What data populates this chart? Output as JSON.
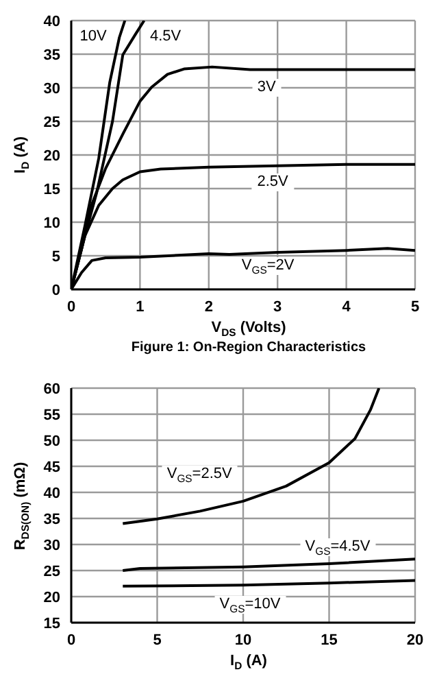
{
  "chart_data": [
    {
      "type": "line",
      "title": "Figure 1: On-Region Characteristics",
      "xlabel": "V$_{DS}$ (Volts)",
      "ylabel": "I$_{D}$ (A)",
      "xlim": [
        0,
        5
      ],
      "xticks": [
        0,
        1,
        2,
        3,
        4,
        5
      ],
      "ylim": [
        0,
        40
      ],
      "yticks": [
        0,
        5,
        10,
        15,
        20,
        25,
        30,
        35,
        40
      ],
      "grid": true,
      "line_style": "solid",
      "series": [
        {
          "name": "10V",
          "color": "#000000",
          "x": [
            0,
            0.2,
            0.4,
            0.56,
            0.7,
            0.78
          ],
          "values": [
            0,
            9.5,
            19.5,
            30.8,
            37.5,
            40
          ]
        },
        {
          "name": "4.5V",
          "color": "#000000",
          "x": [
            0,
            0.2,
            0.37,
            0.6,
            0.75,
            0.93,
            1.06
          ],
          "values": [
            0,
            8,
            14.4,
            25,
            34.9,
            37.9,
            40
          ]
        },
        {
          "name": "3V",
          "color": "#000000",
          "x": [
            0,
            0.15,
            0.29,
            0.5,
            0.76,
            1,
            1.17,
            1.4,
            1.64,
            2.05,
            2.6,
            3,
            4,
            5
          ],
          "values": [
            0,
            6,
            12.4,
            18,
            23.3,
            28,
            30.1,
            32,
            32.8,
            33.1,
            32.7,
            32.7,
            32.7,
            32.7
          ]
        },
        {
          "name": "2.5V",
          "color": "#000000",
          "x": [
            0,
            0.2,
            0.4,
            0.6,
            0.75,
            1,
            1.3,
            2,
            3,
            4,
            5
          ],
          "values": [
            0,
            8,
            12.5,
            15,
            16.3,
            17.5,
            17.9,
            18.2,
            18.4,
            18.6,
            18.6
          ]
        },
        {
          "name": "V$_{GS}$=2V",
          "color": "#000000",
          "x": [
            0,
            0.15,
            0.3,
            0.5,
            1,
            2,
            2.3,
            3,
            4,
            4.6,
            5
          ],
          "values": [
            0,
            2.5,
            4.3,
            4.7,
            4.8,
            5.3,
            5.2,
            5.5,
            5.8,
            6.1,
            5.8
          ]
        }
      ]
    },
    {
      "type": "line",
      "xlabel": "I$_{D}$ (A)",
      "ylabel": "R$_{DS(ON)}$ (mΩ)",
      "xlim": [
        0,
        20
      ],
      "xticks": [
        0,
        5,
        10,
        15,
        20
      ],
      "ylim": [
        15,
        60
      ],
      "yticks": [
        15,
        20,
        25,
        30,
        35,
        40,
        45,
        50,
        55,
        60
      ],
      "grid": true,
      "line_style": "solid",
      "series": [
        {
          "name": "V$_{GS}$=2.5V",
          "color": "#000000",
          "x": [
            3,
            5,
            7.5,
            10,
            12.5,
            15,
            16.5,
            17.4,
            17.9
          ],
          "values": [
            34,
            34.9,
            36.4,
            38.3,
            41.2,
            45.7,
            50.3,
            55.8,
            60
          ]
        },
        {
          "name": "V$_{GS}$=4.5V",
          "color": "#000000",
          "x": [
            3,
            4,
            10,
            15,
            20
          ],
          "values": [
            25,
            25.4,
            25.7,
            26.3,
            27.2
          ]
        },
        {
          "name": "V$_{GS}$=10V",
          "color": "#000000",
          "x": [
            3,
            10,
            15,
            20
          ],
          "values": [
            22,
            22.2,
            22.6,
            23.1
          ]
        }
      ]
    }
  ]
}
